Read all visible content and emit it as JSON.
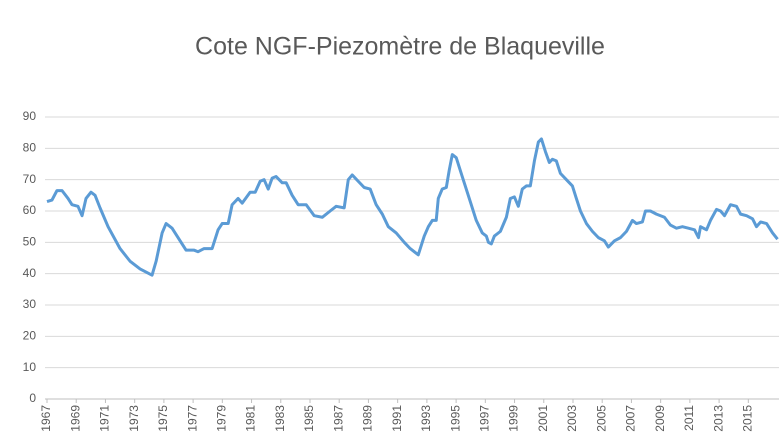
{
  "chart_data": {
    "type": "line",
    "title": "Cote NGF-Piezomètre de Blaqueville",
    "x": [
      1967.0,
      1967.34,
      1967.68,
      1968.03,
      1968.44,
      1968.71,
      1969.12,
      1969.4,
      1969.67,
      1970.01,
      1970.29,
      1970.63,
      1971.18,
      1972.0,
      1972.68,
      1973.37,
      1973.78,
      1974.19,
      1974.47,
      1974.88,
      1975.15,
      1975.56,
      1976.11,
      1976.52,
      1977.07,
      1977.34,
      1977.75,
      1978.3,
      1978.71,
      1978.99,
      1979.4,
      1979.67,
      1980.08,
      1980.36,
      1980.9,
      1981.25,
      1981.59,
      1981.86,
      1982.14,
      1982.41,
      1982.68,
      1983.1,
      1983.37,
      1983.78,
      1984.19,
      1984.74,
      1985.29,
      1985.84,
      1986.38,
      1986.79,
      1987.34,
      1987.62,
      1987.89,
      1988.3,
      1988.71,
      1989.12,
      1989.53,
      1989.95,
      1990.36,
      1990.9,
      1991.45,
      1991.86,
      1992.41,
      1992.82,
      1993.1,
      1993.37,
      1993.64,
      1993.78,
      1994.05,
      1994.33,
      1994.53,
      1994.74,
      1995.01,
      1995.42,
      1995.97,
      1996.38,
      1996.79,
      1997.07,
      1997.21,
      1997.41,
      1997.62,
      1998.03,
      1998.44,
      1998.71,
      1998.99,
      1999.26,
      1999.53,
      1999.81,
      2000.08,
      2000.36,
      2000.63,
      2000.84,
      2001.11,
      2001.38,
      2001.59,
      2001.86,
      2002.14,
      2002.55,
      2002.96,
      2003.23,
      2003.51,
      2003.92,
      2004.33,
      2004.74,
      2005.15,
      2005.42,
      2005.84,
      2006.25,
      2006.66,
      2007.07,
      2007.34,
      2007.75,
      2007.96,
      2008.3,
      2008.71,
      2009.26,
      2009.67,
      2010.08,
      2010.49,
      2010.9,
      2011.32,
      2011.59,
      2011.73,
      2012.14,
      2012.41,
      2012.82,
      2013.1,
      2013.37,
      2013.78,
      2014.19,
      2014.47,
      2014.88,
      2015.29,
      2015.56,
      2015.84,
      2016.25,
      2016.66,
      2017.0
    ],
    "series": [
      {
        "color": "#5b9bd5",
        "values": [
          63,
          63.5,
          66.5,
          66.5,
          64,
          62,
          61.5,
          58.5,
          64,
          66,
          65,
          61,
          55,
          48,
          44,
          41.5,
          40.5,
          39.5,
          44,
          53,
          56,
          54.5,
          50.5,
          47.5,
          47.5,
          47,
          48,
          48,
          54,
          56,
          56,
          62,
          64,
          62.5,
          66,
          66,
          69.5,
          70,
          67,
          70.5,
          71,
          69,
          69,
          65,
          62,
          62,
          58.5,
          58,
          60,
          61.5,
          61,
          70,
          71.5,
          69.5,
          67.5,
          67,
          62,
          59,
          55,
          53,
          50,
          48,
          46,
          52,
          55,
          57,
          57,
          64,
          67,
          67.5,
          73,
          78,
          77,
          71,
          63,
          57,
          53,
          52,
          50,
          49.5,
          52,
          53.5,
          58,
          64,
          64.5,
          61.5,
          67,
          68,
          68,
          76,
          82,
          83,
          79,
          75.5,
          76.5,
          76,
          72,
          70,
          68,
          64,
          60,
          56,
          53.5,
          51.5,
          50.5,
          48.5,
          50.5,
          51.5,
          53.5,
          57,
          56,
          56.5,
          60,
          60,
          59,
          58,
          55.5,
          54.5,
          55,
          54.5,
          54,
          51.5,
          55,
          54,
          57,
          60.5,
          60,
          58.5,
          62,
          61.5,
          59,
          58.5,
          57.5,
          55,
          56.5,
          56,
          53,
          51
        ]
      }
    ],
    "xlim": [
      1967,
      2017.1
    ],
    "xticks": [
      1967,
      1969,
      1971,
      1973,
      1975,
      1977,
      1979,
      1981,
      1983,
      1985,
      1987,
      1989,
      1991,
      1993,
      1995,
      1997,
      1999,
      2001,
      2003,
      2005,
      2007,
      2009,
      2011,
      2013,
      2015
    ],
    "ylim": [
      0,
      90
    ],
    "yticks": [
      0,
      10,
      20,
      30,
      40,
      50,
      60,
      70,
      80,
      90
    ],
    "grid": true
  }
}
